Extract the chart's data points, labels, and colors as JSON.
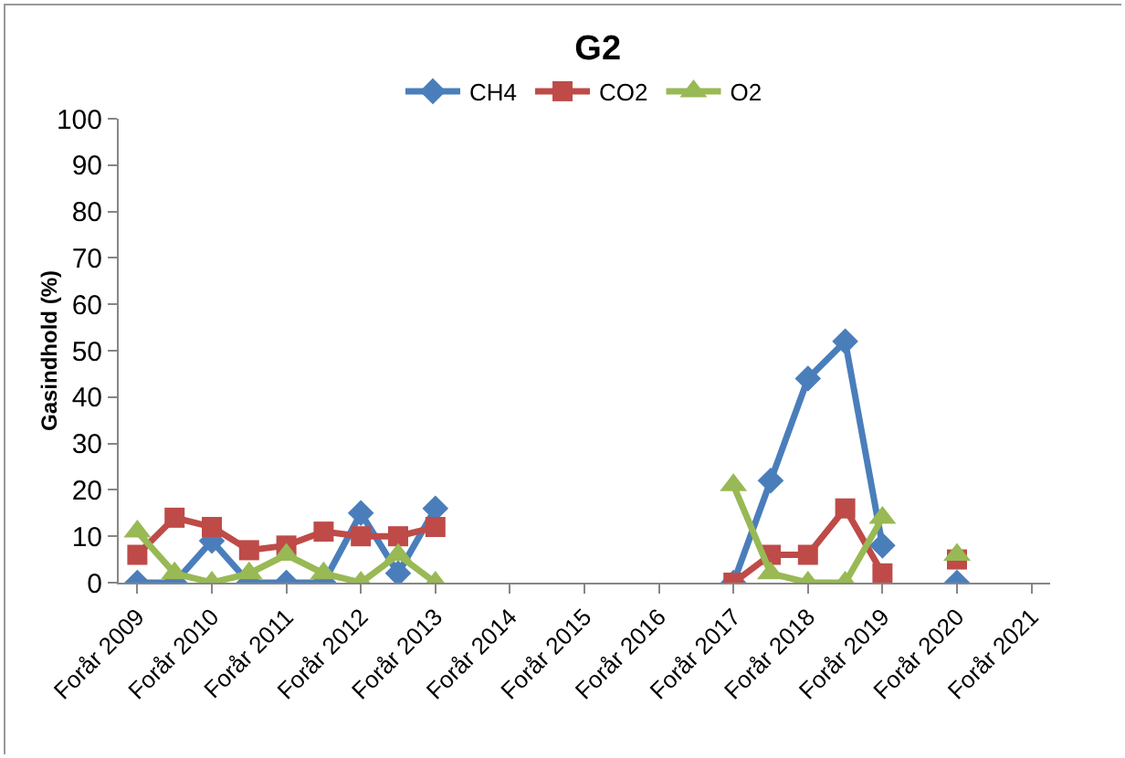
{
  "chart_data": {
    "type": "line",
    "title": "G2",
    "ylabel": "Gasindhold (%)",
    "categories": [
      "Forår 2009",
      null,
      "Forår 2010",
      null,
      "Forår 2011",
      null,
      "Forår 2012",
      null,
      "Forår 2013",
      null,
      "Forår 2014",
      null,
      "Forår 2015",
      null,
      "Forår 2016",
      null,
      "Forår 2017",
      null,
      "Forår 2018",
      null,
      "Forår 2019",
      null,
      "Forår 2020",
      null,
      "Forår 2021"
    ],
    "series": [
      {
        "name": "CH4",
        "color": "#4a7ebb",
        "marker": "diamond",
        "values": [
          0,
          0,
          9,
          0,
          0,
          0,
          15,
          2,
          16,
          null,
          null,
          null,
          null,
          null,
          null,
          null,
          0,
          22,
          44,
          52,
          8,
          null,
          0,
          null,
          null
        ]
      },
      {
        "name": "CO2",
        "color": "#be4b48",
        "marker": "square",
        "values": [
          6,
          14,
          12,
          7,
          8,
          11,
          10,
          10,
          12,
          null,
          null,
          null,
          null,
          null,
          null,
          null,
          0,
          6,
          6,
          16,
          2,
          null,
          5,
          null,
          null
        ]
      },
      {
        "name": "O2",
        "color": "#98b954",
        "marker": "triangle",
        "values": [
          11,
          2,
          0,
          2,
          6,
          2,
          0,
          6,
          0,
          null,
          null,
          null,
          null,
          null,
          null,
          null,
          21,
          2,
          0,
          0,
          14,
          null,
          6,
          null,
          null
        ]
      }
    ],
    "ylim": [
      0,
      100
    ],
    "yticks": [
      0,
      10,
      20,
      30,
      40,
      50,
      60,
      70,
      80,
      90,
      100
    ],
    "grid": false,
    "legend": "top",
    "line_style": "solid"
  }
}
